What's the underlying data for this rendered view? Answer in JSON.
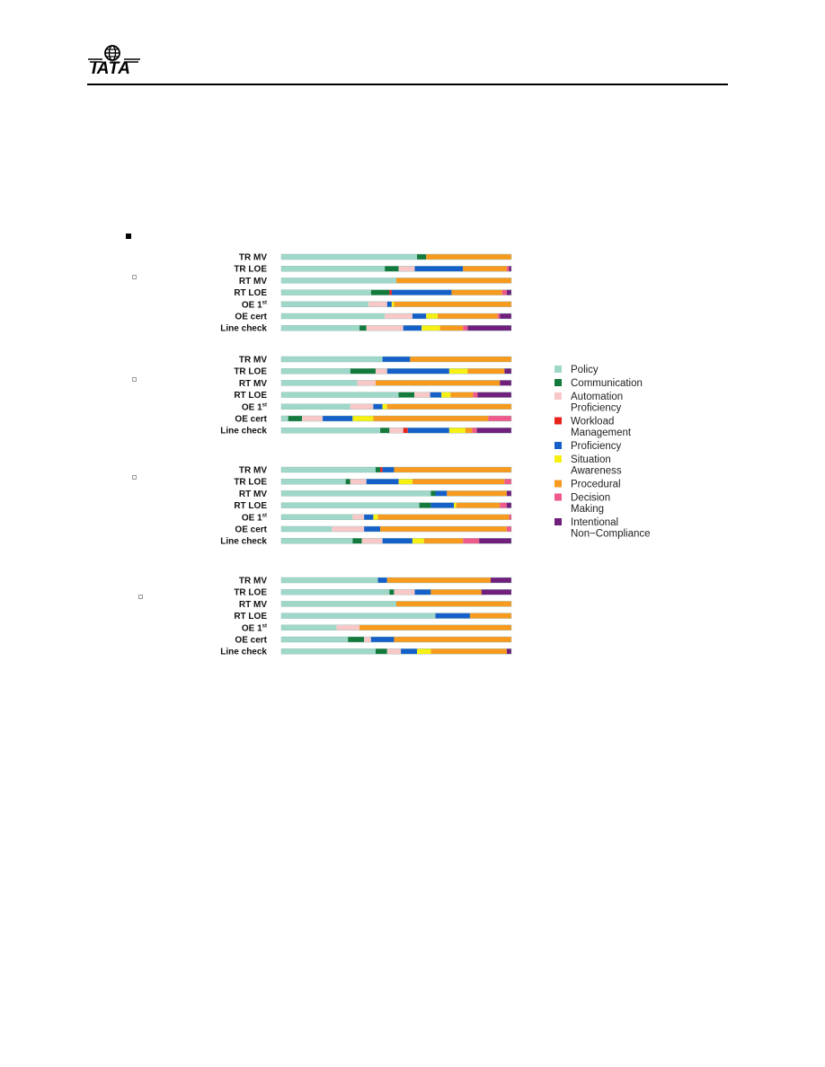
{
  "header": {
    "logo_text": "IATA"
  },
  "legend": [
    {
      "name": "Policy",
      "lines": [
        "Policy"
      ],
      "color": "#9fd8c9"
    },
    {
      "name": "Communication",
      "lines": [
        "Communication"
      ],
      "color": "#137a3c"
    },
    {
      "name": "Automation Proficiency",
      "lines": [
        "Automation",
        "Proficiency"
      ],
      "color": "#f8c8c8"
    },
    {
      "name": "Workload Management",
      "lines": [
        "Workload",
        "Management"
      ],
      "color": "#e8231c"
    },
    {
      "name": "Proficiency",
      "lines": [
        "Proficiency"
      ],
      "color": "#1560c8"
    },
    {
      "name": "Situation Awareness",
      "lines": [
        "Situation",
        "Awareness"
      ],
      "color": "#f6f013"
    },
    {
      "name": "Procedural",
      "lines": [
        "Procedural"
      ],
      "color": "#f79a1e"
    },
    {
      "name": "Decision Making",
      "lines": [
        "Decision",
        "Making"
      ],
      "color": "#ef5a8a"
    },
    {
      "name": "Intentional Non-Compliance",
      "lines": [
        "Intentional",
        "Non−Compliance"
      ],
      "color": "#70207c"
    }
  ],
  "chart_data": [
    {
      "type": "bar",
      "stacked": "100%",
      "orientation": "horizontal",
      "categories": [
        "TR MV",
        "TR LOE",
        "RT MV",
        "RT LOE",
        "OE 1st",
        "OE cert",
        "Line check"
      ],
      "series": [
        {
          "name": "Policy",
          "values": [
            59,
            45,
            50,
            39,
            38,
            45,
            34
          ]
        },
        {
          "name": "Communication",
          "values": [
            4,
            6,
            0,
            8,
            0,
            0,
            3
          ]
        },
        {
          "name": "Automation Proficiency",
          "values": [
            0,
            7,
            0,
            0,
            8,
            12,
            16
          ]
        },
        {
          "name": "Workload Management",
          "values": [
            0,
            0,
            0,
            1,
            0,
            0,
            0
          ]
        },
        {
          "name": "Proficiency",
          "values": [
            0,
            21,
            0,
            26,
            2,
            6,
            8
          ]
        },
        {
          "name": "Situation Awareness",
          "values": [
            0,
            0,
            0,
            0,
            1,
            5,
            8
          ]
        },
        {
          "name": "Procedural",
          "values": [
            37,
            19,
            50,
            22,
            51,
            26,
            10
          ]
        },
        {
          "name": "Decision Making",
          "values": [
            0,
            1,
            0,
            2,
            0,
            1,
            2
          ]
        },
        {
          "name": "Intentional Non-Compliance",
          "values": [
            0,
            1,
            0,
            2,
            0,
            5,
            19
          ]
        }
      ]
    },
    {
      "type": "bar",
      "stacked": "100%",
      "orientation": "horizontal",
      "categories": [
        "TR MV",
        "TR LOE",
        "RT MV",
        "RT LOE",
        "OE 1st",
        "OE cert",
        "Line check"
      ],
      "series": [
        {
          "name": "Policy",
          "values": [
            44,
            30,
            33,
            52,
            30,
            3,
            43
          ]
        },
        {
          "name": "Communication",
          "values": [
            0,
            11,
            0,
            7,
            0,
            6,
            4
          ]
        },
        {
          "name": "Automation Proficiency",
          "values": [
            0,
            5,
            8,
            7,
            10,
            9,
            6
          ]
        },
        {
          "name": "Workload Management",
          "values": [
            0,
            0,
            0,
            0,
            0,
            0,
            2
          ]
        },
        {
          "name": "Proficiency",
          "values": [
            12,
            27,
            0,
            5,
            4,
            13,
            18
          ]
        },
        {
          "name": "Situation Awareness",
          "values": [
            0,
            8,
            0,
            4,
            2,
            9,
            7
          ]
        },
        {
          "name": "Procedural",
          "values": [
            44,
            16,
            54,
            10,
            54,
            50,
            3
          ]
        },
        {
          "name": "Decision Making",
          "values": [
            0,
            0,
            0,
            2,
            0,
            10,
            2
          ]
        },
        {
          "name": "Intentional Non-Compliance",
          "values": [
            0,
            3,
            5,
            15,
            0,
            0,
            15
          ]
        }
      ]
    },
    {
      "type": "bar",
      "stacked": "100%",
      "orientation": "horizontal",
      "categories": [
        "TR MV",
        "TR LOE",
        "RT MV",
        "RT LOE",
        "OE 1st",
        "OE cert",
        "Line check"
      ],
      "series": [
        {
          "name": "Policy",
          "values": [
            41,
            28,
            65,
            60,
            31,
            22,
            31
          ]
        },
        {
          "name": "Communication",
          "values": [
            2,
            2,
            2,
            5,
            0,
            0,
            4
          ]
        },
        {
          "name": "Automation Proficiency",
          "values": [
            0,
            7,
            0,
            0,
            5,
            14,
            9
          ]
        },
        {
          "name": "Workload Management",
          "values": [
            1,
            0,
            0,
            0,
            0,
            0,
            0
          ]
        },
        {
          "name": "Proficiency",
          "values": [
            5,
            14,
            5,
            10,
            4,
            7,
            13
          ]
        },
        {
          "name": "Situation Awareness",
          "values": [
            0,
            6,
            0,
            1,
            2,
            0,
            5
          ]
        },
        {
          "name": "Procedural",
          "values": [
            51,
            40,
            26,
            19,
            57,
            55,
            17
          ]
        },
        {
          "name": "Decision Making",
          "values": [
            0,
            3,
            0,
            3,
            1,
            2,
            7
          ]
        },
        {
          "name": "Intentional Non-Compliance",
          "values": [
            0,
            0,
            2,
            2,
            0,
            0,
            14
          ]
        }
      ]
    },
    {
      "type": "bar",
      "stacked": "100%",
      "orientation": "horizontal",
      "categories": [
        "TR MV",
        "TR LOE",
        "RT MV",
        "RT LOE",
        "OE 1st",
        "OE cert",
        "Line check"
      ],
      "series": [
        {
          "name": "Policy",
          "values": [
            42,
            47,
            50,
            67,
            24,
            29,
            41
          ]
        },
        {
          "name": "Communication",
          "values": [
            0,
            2,
            0,
            0,
            0,
            7,
            5
          ]
        },
        {
          "name": "Automation Proficiency",
          "values": [
            0,
            9,
            0,
            0,
            10,
            3,
            6
          ]
        },
        {
          "name": "Workload Management",
          "values": [
            0,
            0,
            0,
            0,
            0,
            0,
            0
          ]
        },
        {
          "name": "Proficiency",
          "values": [
            4,
            7,
            0,
            15,
            0,
            10,
            7
          ]
        },
        {
          "name": "Situation Awareness",
          "values": [
            0,
            0,
            0,
            0,
            0,
            0,
            6
          ]
        },
        {
          "name": "Procedural",
          "values": [
            45,
            22,
            50,
            18,
            66,
            51,
            33
          ]
        },
        {
          "name": "Decision Making",
          "values": [
            0,
            0,
            0,
            0,
            0,
            0,
            0
          ]
        },
        {
          "name": "Intentional Non-Compliance",
          "values": [
            9,
            13,
            0,
            0,
            0,
            0,
            2
          ]
        }
      ]
    }
  ]
}
